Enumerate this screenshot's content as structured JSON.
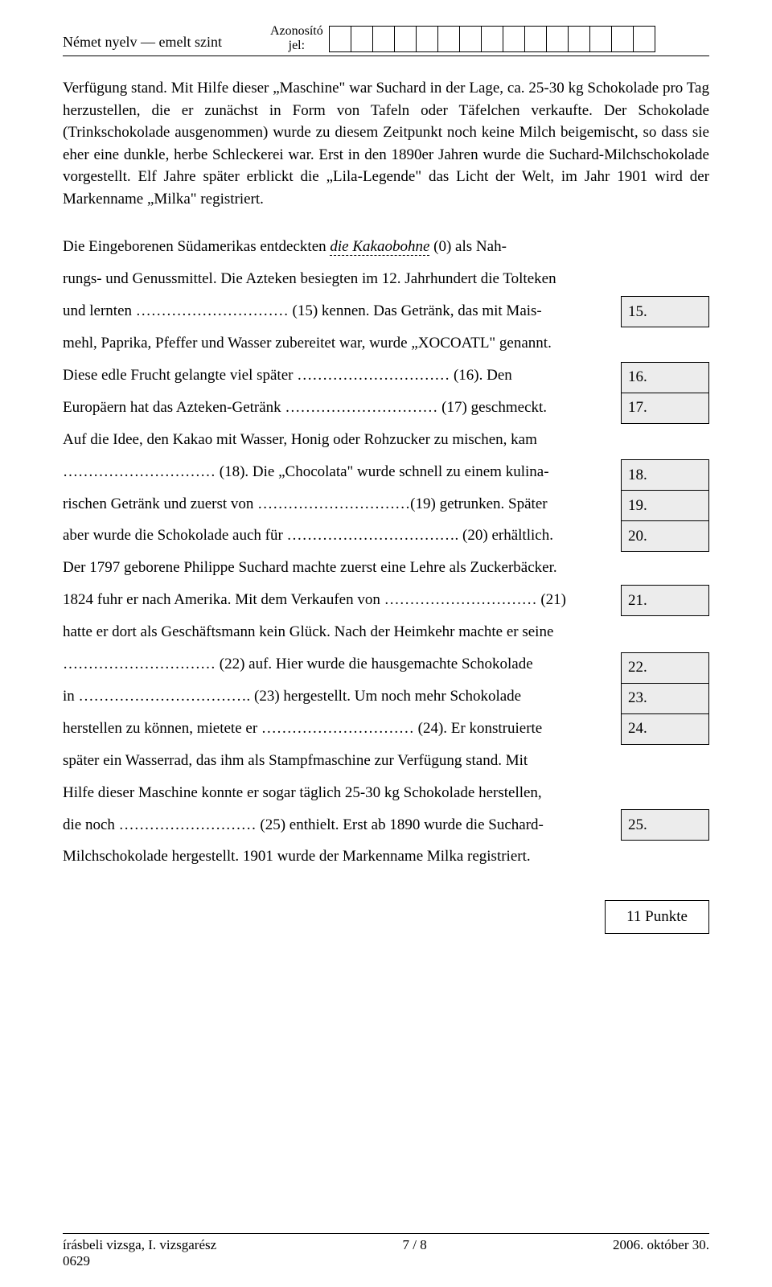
{
  "header": {
    "left": "Német nyelv — emelt szint",
    "id_label_1": "Azonosító",
    "id_label_2": "jel:",
    "box_count": 15
  },
  "para1": "Verfügung stand. Mit Hilfe dieser „Maschine\" war Suchard in der Lage, ca. 25-30 kg Schokolade pro Tag herzustellen, die er zunächst in Form von Tafeln oder Täfelchen verkaufte. Der Schokolade (Trinkschokolade ausgenommen) wurde zu diesem Zeitpunkt noch keine Milch beigemischt, so dass sie eher eine dunkle, herbe Schleckerei war. Erst in den 1890er Jahren wurde die Suchard-Milchschokolade vorgestellt. Elf Jahre später erblickt die „Lila-Legende\" das Licht der Welt, im Jahr 1901 wird der Markenname „Milka\" registriert.",
  "fill": {
    "l1": "Die Eingeborenen Südamerikas entdeckten ",
    "l1_u": "die Kakaobohne",
    "l1b": " (0) als Nah-",
    "l2": "rungs- und Genussmittel. Die Azteken besiegten im 12. Jahrhundert die Tolteken",
    "l3": "und lernten ………………………… (15) kennen. Das Getränk, das mit Mais-",
    "l4": "mehl, Paprika, Pfeffer und Wasser zubereitet war, wurde „XOCOATL\" genannt.",
    "l5": "Diese edle Frucht gelangte viel später ………………………… (16). Den",
    "l6": "Europäern hat das Azteken-Getränk ………………………… (17) geschmeckt.",
    "l7": "Auf die Idee, den Kakao mit Wasser, Honig oder Rohzucker zu mischen, kam",
    "l8": "………………………… (18). Die „Chocolata\" wurde schnell zu einem kulina-",
    "l9": "rischen Getränk und zuerst von …………………………(19) getrunken. Später",
    "l10": "aber wurde die Schokolade auch für ……………………………. (20) erhältlich.",
    "l11": "Der 1797 geborene Philippe Suchard machte zuerst eine Lehre als Zuckerbäcker.",
    "l12": "1824 fuhr er nach Amerika. Mit dem Verkaufen von ………………………… (21)",
    "l13": "hatte er dort als Geschäftsmann kein Glück. Nach der Heimkehr machte er seine",
    "l14": "………………………… (22) auf. Hier wurde die hausgemachte Schokolade",
    "l15": "in ……………………………. (23) hergestellt. Um noch mehr Schokolade",
    "l16": "herstellen zu können, mietete er ………………………… (24). Er konstruierte",
    "l17": "später ein Wasserrad, das ihm als Stampfmaschine zur Verfügung stand. Mit",
    "l18": "Hilfe dieser Maschine konnte er sogar täglich 25-30 kg Schokolade herstellen,",
    "l19": "die noch ……………………… (25) enthielt. Erst ab 1890 wurde die Suchard-",
    "l20": "Milchschokolade hergestellt. 1901 wurde der Markenname Milka registriert."
  },
  "answers": {
    "a15": "15.",
    "a16": "16.",
    "a17": "17.",
    "a18": "18.",
    "a19": "19.",
    "a20": "20.",
    "a21": "21.",
    "a22": "22.",
    "a23": "23.",
    "a24": "24.",
    "a25": "25."
  },
  "points": "11 Punkte",
  "footer": {
    "left": "írásbeli vizsga, I. vizsgarész",
    "center": "7 / 8",
    "right": "2006. október 30.",
    "code": "0629"
  }
}
